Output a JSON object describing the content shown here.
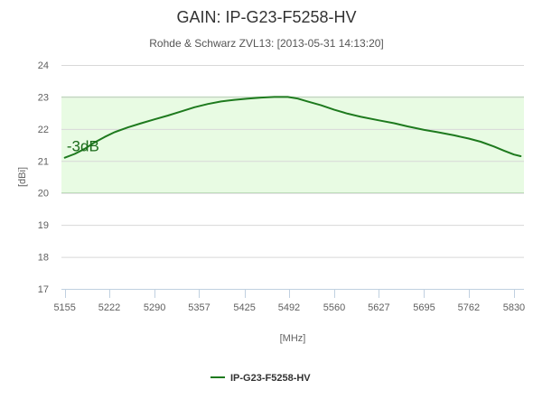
{
  "chart_data": {
    "type": "line",
    "title": "GAIN: IP-G23-F5258-HV",
    "subtitle": "Rohde & Schwarz ZVL13: [2013-05-31 14:13:20]",
    "xlabel": "[MHz]",
    "ylabel": "[dBi]",
    "xlim": [
      5150,
      5845
    ],
    "ylim": [
      17,
      24
    ],
    "x_ticks": [
      5155,
      5222,
      5290,
      5357,
      5425,
      5492,
      5560,
      5627,
      5695,
      5762,
      5830
    ],
    "y_ticks": [
      17,
      18,
      19,
      20,
      21,
      22,
      23,
      24
    ],
    "grid": true,
    "band": {
      "from": 20,
      "to": 23,
      "color": "#e8fbe3",
      "border_color": "#9fd39a"
    },
    "annotation": {
      "text": "-3dB",
      "x": 5158,
      "y": 21.3
    },
    "legend": {
      "placement": "bottom-center"
    },
    "colors": {
      "series": "#1e7a1e"
    },
    "series": [
      {
        "name": "IP-G23-F5258-HV",
        "x": [
          5155,
          5170,
          5185,
          5200,
          5215,
          5230,
          5250,
          5270,
          5290,
          5310,
          5330,
          5350,
          5370,
          5390,
          5410,
          5430,
          5450,
          5470,
          5490,
          5505,
          5520,
          5540,
          5560,
          5580,
          5600,
          5627,
          5650,
          5670,
          5695,
          5715,
          5740,
          5762,
          5780,
          5800,
          5815,
          5830,
          5840
        ],
        "values": [
          21.1,
          21.22,
          21.38,
          21.58,
          21.75,
          21.9,
          22.05,
          22.18,
          22.3,
          22.42,
          22.55,
          22.68,
          22.78,
          22.86,
          22.91,
          22.95,
          22.98,
          23.0,
          23.0,
          22.95,
          22.86,
          22.74,
          22.6,
          22.48,
          22.38,
          22.27,
          22.18,
          22.08,
          21.97,
          21.9,
          21.8,
          21.7,
          21.6,
          21.45,
          21.32,
          21.2,
          21.15
        ]
      }
    ]
  }
}
